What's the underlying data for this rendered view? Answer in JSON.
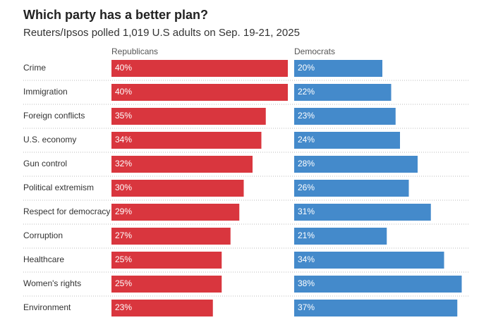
{
  "chart_data": {
    "type": "bar",
    "title": "Which party has a better plan?",
    "subtitle": "Reuters/Ipsos polled 1,019 U.S adults on Sep. 19-21, 2025",
    "categories": [
      "Crime",
      "Immigration",
      "Foreign conflicts",
      "U.S. economy",
      "Gun control",
      "Political extremism",
      "Respect for democracy",
      "Corruption",
      "Healthcare",
      "Women's rights",
      "Environment"
    ],
    "series": [
      {
        "name": "Republicans",
        "color": "#d9363e",
        "values": [
          40,
          40,
          35,
          34,
          32,
          30,
          29,
          27,
          25,
          25,
          23
        ],
        "value_labels": [
          "40%",
          "40%",
          "35%",
          "34%",
          "32%",
          "30%",
          "29%",
          "27%",
          "25%",
          "25%",
          "23%"
        ]
      },
      {
        "name": "Democrats",
        "color": "#448acb",
        "values": [
          20,
          22,
          23,
          24,
          28,
          26,
          31,
          21,
          34,
          38,
          37
        ],
        "value_labels": [
          "20%",
          "22%",
          "23%",
          "24%",
          "28%",
          "26%",
          "31%",
          "21%",
          "34%",
          "38%",
          "37%"
        ]
      }
    ]
  }
}
